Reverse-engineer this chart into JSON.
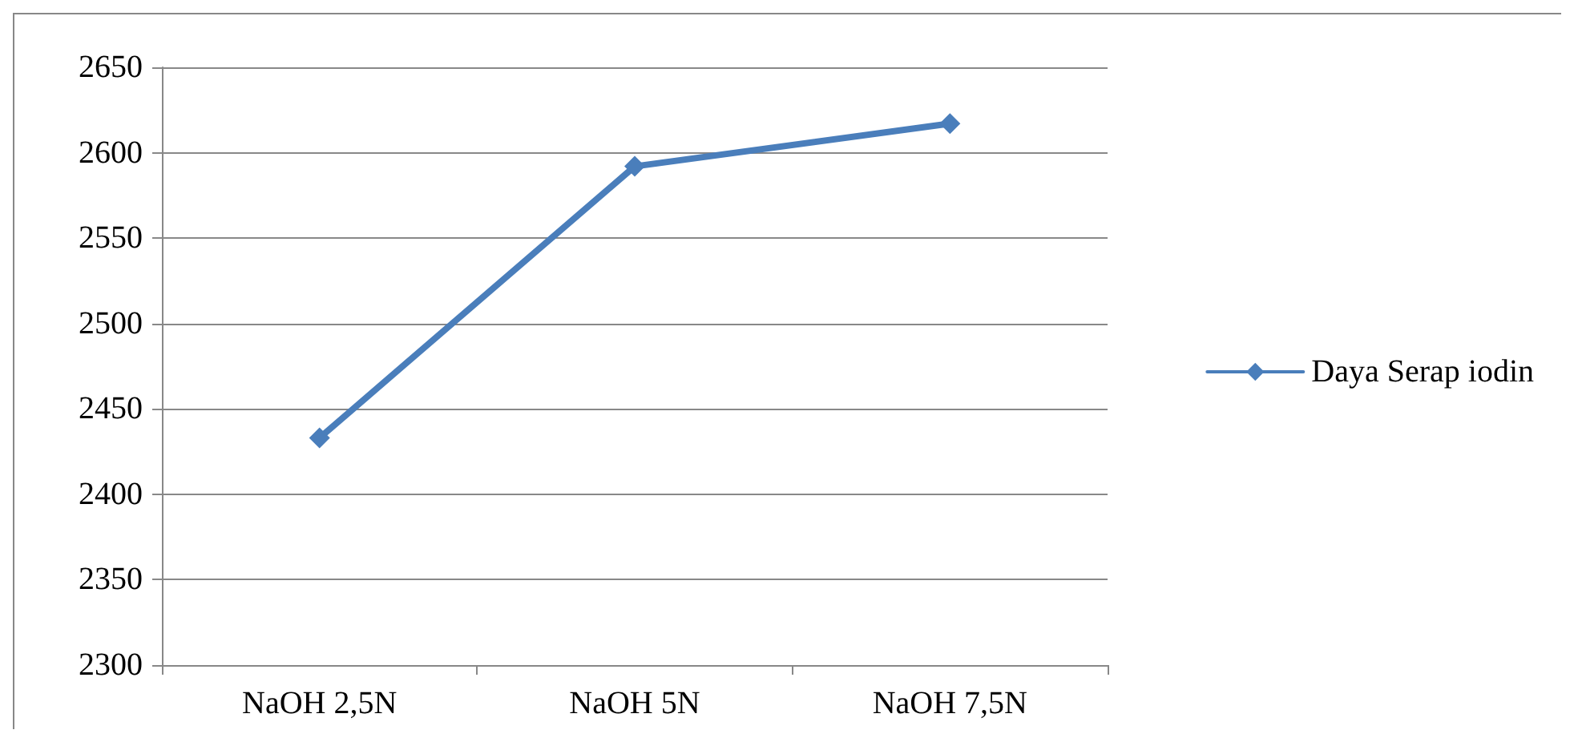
{
  "chart_data": {
    "type": "line",
    "categories": [
      "NaOH 2,5N",
      "NaOH 5N",
      "NaOH 7,5N"
    ],
    "series": [
      {
        "name": "Daya Serap iodin",
        "color": "#4a7ebb",
        "values": [
          2433,
          2592,
          2617
        ]
      }
    ],
    "ylim": [
      2300,
      2650
    ],
    "yticks": [
      2300,
      2350,
      2400,
      2450,
      2500,
      2550,
      2600,
      2650
    ],
    "grid": "y",
    "legend": "right",
    "marker": "diamond",
    "line_style": "solid"
  }
}
